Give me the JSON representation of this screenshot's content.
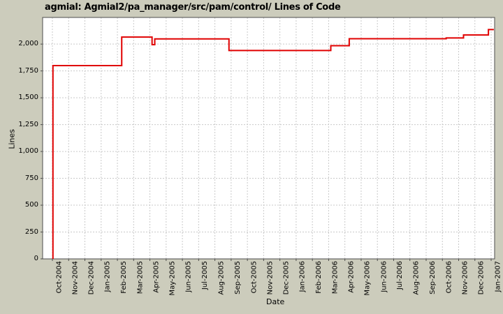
{
  "chart_data": {
    "type": "line",
    "line_style": "step",
    "title": "agmial: Agmial2/pa_manager/src/pam/control/ Lines of Code",
    "xlabel": "Date",
    "ylabel": "Lines",
    "x_ticks": [
      "Oct-2004",
      "Nov-2004",
      "Dec-2004",
      "Jan-2005",
      "Feb-2005",
      "Mar-2005",
      "Apr-2005",
      "May-2005",
      "Jun-2005",
      "Jul-2005",
      "Aug-2005",
      "Sep-2005",
      "Oct-2005",
      "Nov-2005",
      "Dec-2005",
      "Jan-2006",
      "Feb-2006",
      "Mar-2006",
      "Apr-2006",
      "May-2006",
      "Jun-2006",
      "Jul-2006",
      "Aug-2006",
      "Sep-2006",
      "Oct-2006",
      "Nov-2006",
      "Dec-2006",
      "Jan-2007"
    ],
    "y_ticks": [
      {
        "value": 0,
        "label": "0"
      },
      {
        "value": 250,
        "label": "250"
      },
      {
        "value": 500,
        "label": "500"
      },
      {
        "value": 750,
        "label": "750"
      },
      {
        "value": 1000,
        "label": "1,000"
      },
      {
        "value": 1250,
        "label": "1,250"
      },
      {
        "value": 1500,
        "label": "1,500"
      },
      {
        "value": 1750,
        "label": "1,750"
      },
      {
        "value": 2000,
        "label": "2,000"
      }
    ],
    "ylim": [
      0,
      2248
    ],
    "grid": true,
    "legend": "none",
    "colors": {
      "background": "#ccccbc",
      "plot_background": "#ffffff",
      "gridline": "#c9c9c9",
      "plot_border": "#4d4d4d",
      "series_line": "#e00000"
    },
    "series": [
      {
        "name": "Lines of Code",
        "start": {
          "date": "2004-10-02",
          "loc": 0
        },
        "steps": [
          {
            "date": "2004-10-02",
            "loc": 1800
          },
          {
            "date": "2005-02-09",
            "loc": 2065
          },
          {
            "date": "2005-04-05",
            "loc": 1995
          },
          {
            "date": "2005-04-10",
            "loc": 2048
          },
          {
            "date": "2005-08-27",
            "loc": 1940
          },
          {
            "date": "2006-03-05",
            "loc": 1985
          },
          {
            "date": "2006-04-09",
            "loc": 2050
          },
          {
            "date": "2006-10-08",
            "loc": 2057
          },
          {
            "date": "2006-11-10",
            "loc": 2085
          },
          {
            "date": "2006-12-26",
            "loc": 2135
          }
        ],
        "end_date": "2007-01-06"
      }
    ]
  }
}
